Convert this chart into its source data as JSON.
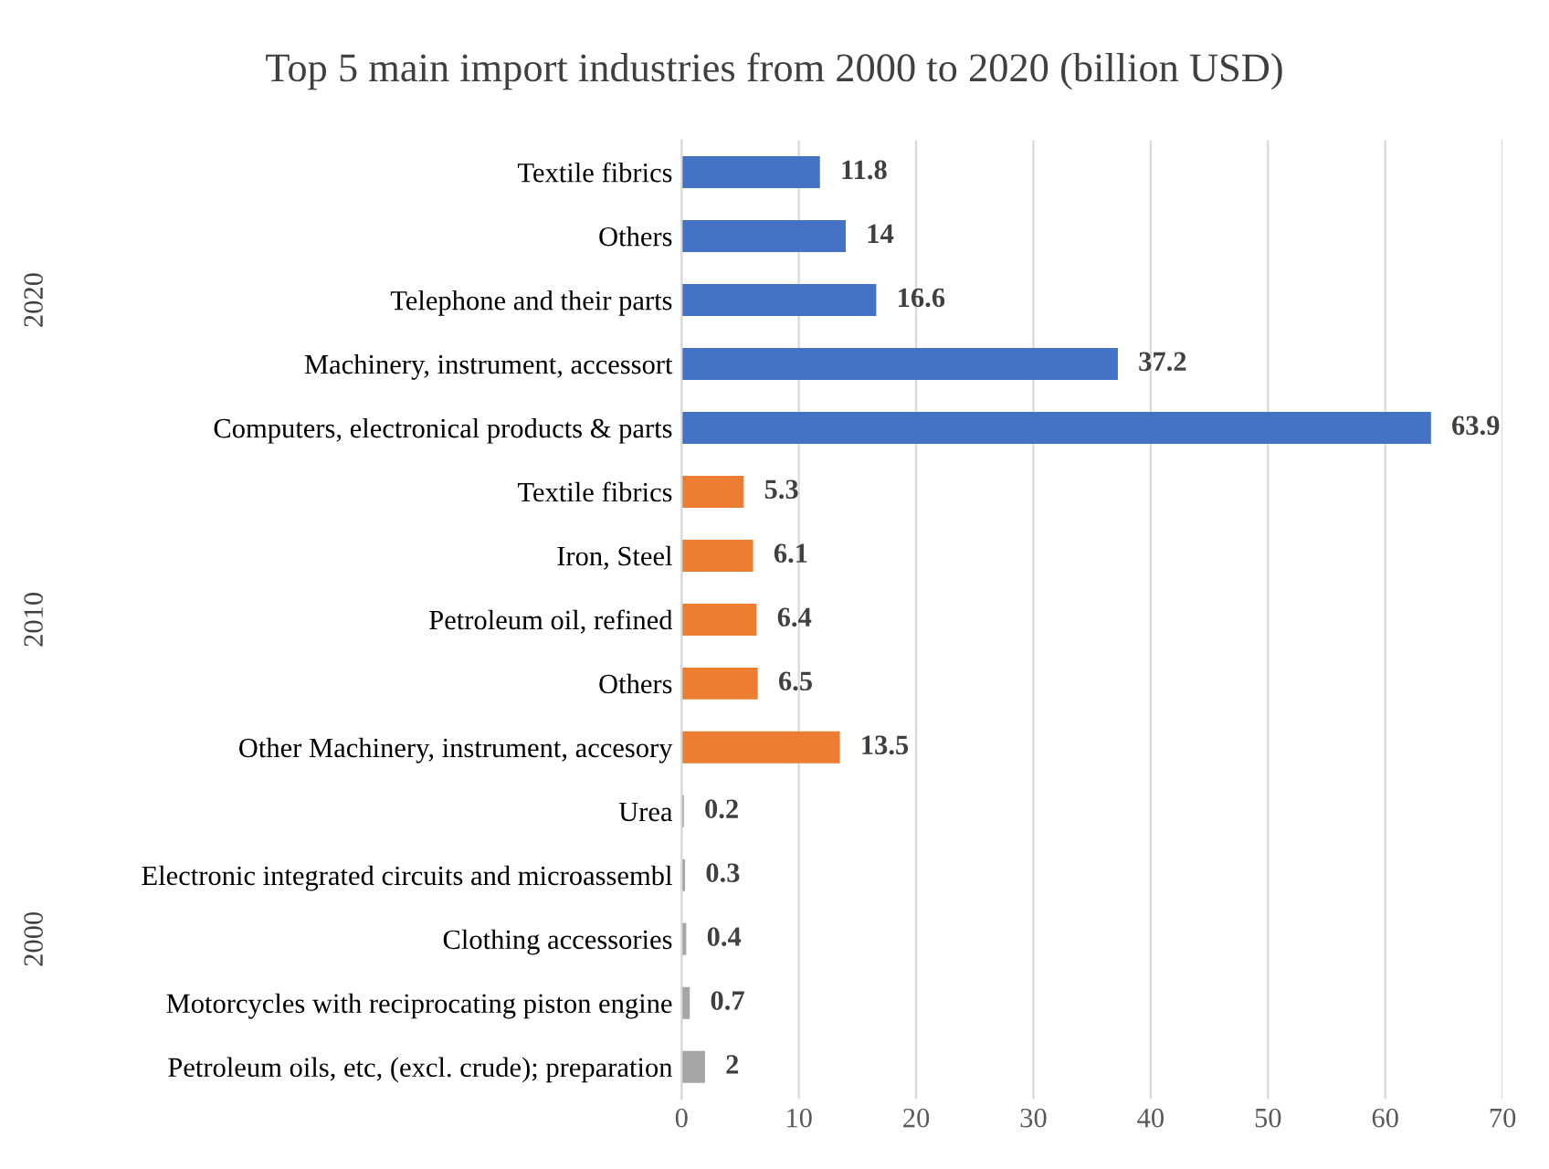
{
  "chart_data": {
    "type": "bar",
    "orientation": "horizontal",
    "title": "Top 5 main import industries from 2000 to 2020 (billion USD)",
    "categories": [
      "Textile fibrics",
      "Others",
      "Telephone and their parts",
      "Machinery, instrument, accessort",
      "Computers, electronical products & parts",
      "Textile fibrics",
      "Iron, Steel",
      "Petroleum oil, refined",
      "Others",
      "Other Machinery, instrument, accesory",
      "Urea",
      "Electronic integrated circuits and microassembl",
      "Clothing accessories",
      "Motorcycles with reciprocating piston engine",
      "Petroleum oils, etc, (excl. crude); preparation"
    ],
    "values": [
      11.8,
      14,
      16.6,
      37.2,
      63.9,
      5.3,
      6.1,
      6.4,
      6.5,
      13.5,
      0.2,
      0.3,
      0.4,
      0.7,
      2
    ],
    "colors": [
      "#4472c4",
      "#4472c4",
      "#4472c4",
      "#4472c4",
      "#4472c4",
      "#ed7d31",
      "#ed7d31",
      "#ed7d31",
      "#ed7d31",
      "#ed7d31",
      "#a5a5a5",
      "#a5a5a5",
      "#a5a5a5",
      "#a5a5a5",
      "#a5a5a5"
    ],
    "annotations": [
      "2020",
      "2010",
      "2000"
    ],
    "xlim": [
      0,
      70
    ],
    "xticks": [
      0,
      10,
      20,
      30,
      40,
      50,
      60,
      70
    ],
    "grid": "x",
    "data_labels": true,
    "legend": false
  }
}
